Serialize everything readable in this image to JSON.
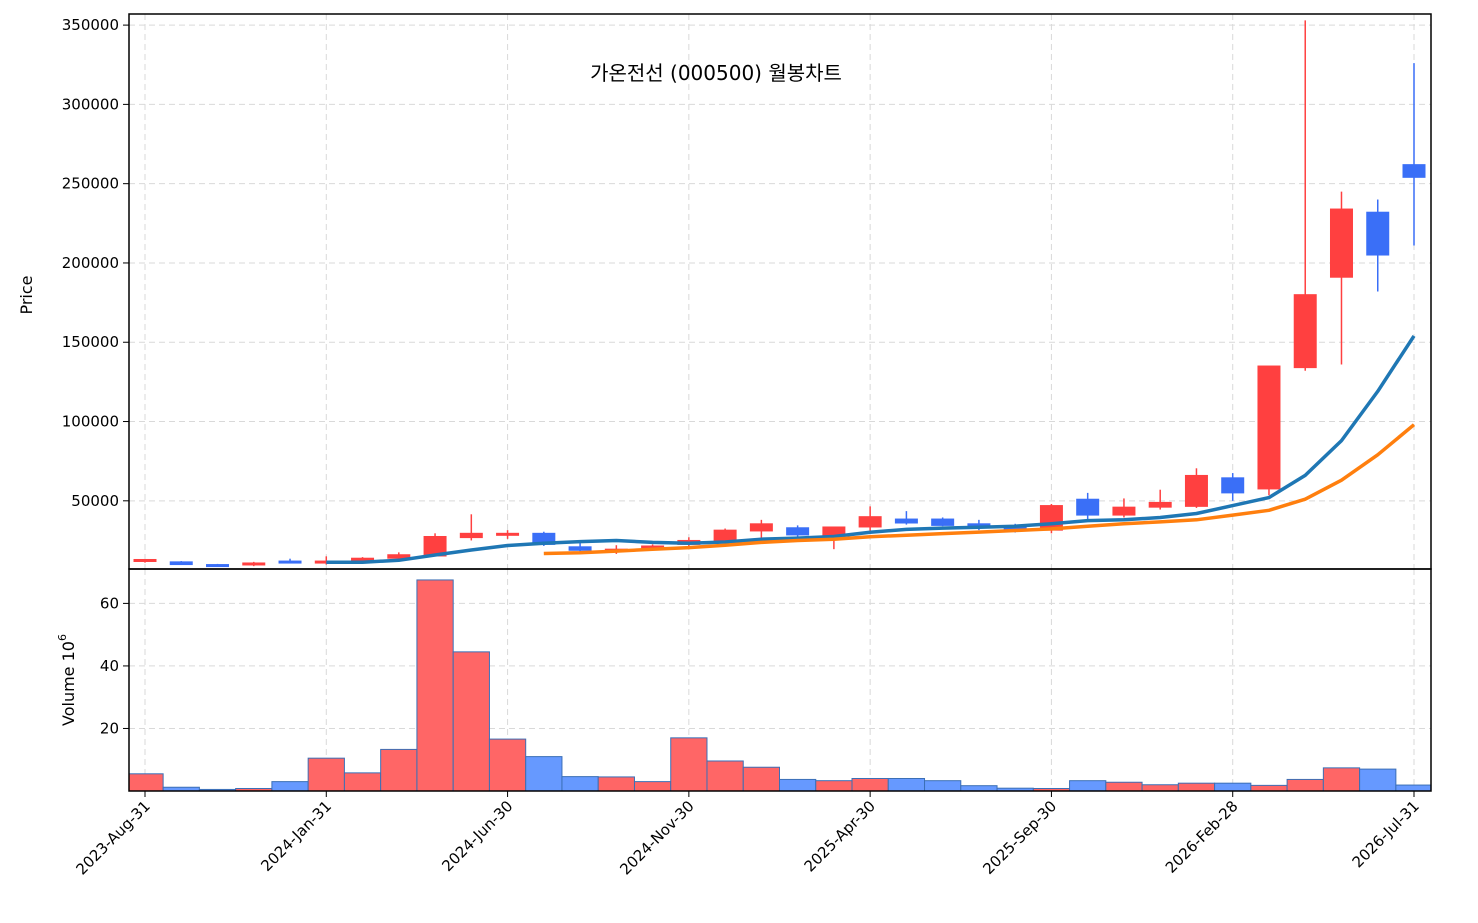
{
  "chart_data": {
    "type": "candlestick",
    "title": "가온전선 (000500) 월봉차트",
    "ylabel": "Price",
    "volume_label": "Volume",
    "volume_exponent": "6",
    "ylim": [
      7000,
      357000
    ],
    "volume_ylim": [
      0,
      71
    ],
    "yticks": [
      50000,
      100000,
      150000,
      200000,
      250000,
      300000,
      350000
    ],
    "volume_yticks": [
      20,
      40,
      60
    ],
    "xtick_labels": [
      "2023-Aug-31",
      "2024-Jan-31",
      "2024-Jun-30",
      "2024-Nov-30",
      "2025-Apr-30",
      "2025-Sep-30",
      "2026-Feb-28",
      "2026-Jul-31"
    ],
    "xtick_indices": [
      0,
      5,
      10,
      15,
      20,
      25,
      30,
      35
    ],
    "up_color": "#ff4040",
    "down_color": "#3a6ff7",
    "volume_up_color": "#ff6666",
    "volume_down_color": "#6699ff",
    "months": [
      "2023-08-31",
      "2023-09-30",
      "2023-10-31",
      "2023-11-30",
      "2023-12-31",
      "2024-01-31",
      "2024-02-29",
      "2024-03-31",
      "2024-04-30",
      "2024-05-31",
      "2024-06-30",
      "2024-07-31",
      "2024-08-31",
      "2024-09-30",
      "2024-10-31",
      "2024-11-30",
      "2024-12-31",
      "2025-01-31",
      "2025-02-28",
      "2025-03-31",
      "2025-04-30",
      "2025-05-31",
      "2025-06-30",
      "2025-07-31",
      "2025-08-31",
      "2025-09-30",
      "2025-10-31",
      "2025-11-30",
      "2025-12-31",
      "2026-01-31",
      "2026-02-28",
      "2026-03-31",
      "2026-04-30",
      "2026-05-31",
      "2026-06-30",
      "2026-07-31"
    ],
    "open": [
      12000,
      11500,
      9800,
      9800,
      12000,
      11000,
      12000,
      13800,
      15200,
      26800,
      29000,
      29500,
      21000,
      18500,
      19500,
      22500,
      25000,
      31000,
      33000,
      26000,
      33500,
      38500,
      38500,
      35500,
      33500,
      31500,
      51000,
      41000,
      46000,
      46500,
      64500,
      57500,
      134000,
      191000,
      232000,
      262000
    ],
    "high": [
      13000,
      12000,
      10200,
      11500,
      13500,
      15000,
      14500,
      17500,
      29500,
      41500,
      31500,
      30500,
      24000,
      22000,
      22500,
      27000,
      32500,
      38000,
      34500,
      30500,
      46500,
      43500,
      39500,
      38000,
      35500,
      48000,
      55000,
      51500,
      57000,
      70500,
      67500,
      135000,
      353000,
      245000,
      240000,
      326000
    ],
    "low": [
      11000,
      9600,
      8400,
      8800,
      10500,
      9800,
      11000,
      13000,
      15000,
      25000,
      26000,
      21500,
      18000,
      16500,
      18500,
      21000,
      23000,
      25500,
      25000,
      19500,
      31000,
      35000,
      34000,
      31500,
      30000,
      29500,
      38000,
      39500,
      44500,
      45500,
      50000,
      53500,
      132000,
      136000,
      182000,
      211000
    ],
    "close": [
      13000,
      9800,
      8700,
      10800,
      11200,
      12000,
      13800,
      16000,
      27500,
      29500,
      29500,
      22500,
      18800,
      19500,
      21500,
      25000,
      31500,
      35500,
      28500,
      33500,
      40000,
      36000,
      34500,
      33000,
      32000,
      47000,
      41000,
      46000,
      49000,
      66000,
      55000,
      135000,
      180000,
      234000,
      205000,
      254000
    ],
    "volume": [
      5.5,
      1.2,
      0.5,
      0.8,
      3.0,
      10.5,
      5.8,
      13.3,
      67.5,
      44.5,
      16.6,
      11.0,
      4.6,
      4.5,
      3.0,
      17.0,
      9.6,
      7.6,
      3.7,
      3.3,
      4.0,
      4.0,
      3.3,
      1.7,
      0.9,
      0.8,
      3.3,
      2.8,
      2.0,
      2.5,
      2.5,
      1.8,
      3.7,
      7.4,
      7.0,
      1.9
    ],
    "series": [
      {
        "name": "",
        "color": "#1f77b4",
        "values": [
          null,
          null,
          null,
          null,
          null,
          11200,
          11300,
          12500,
          15800,
          19000,
          21800,
          23300,
          24300,
          25000,
          23800,
          23200,
          24000,
          25800,
          26500,
          27500,
          30200,
          32000,
          32800,
          33300,
          34000,
          35500,
          37500,
          38000,
          39500,
          42000,
          47000,
          52000,
          66000,
          88000,
          119000,
          154000
        ]
      },
      {
        "name": "",
        "color": "#ff7f0e",
        "values": [
          null,
          null,
          null,
          null,
          null,
          null,
          null,
          null,
          null,
          null,
          null,
          16800,
          17300,
          18300,
          19500,
          20500,
          22000,
          23800,
          25000,
          25800,
          27300,
          28300,
          29300,
          30300,
          31300,
          32300,
          34000,
          35500,
          36700,
          38000,
          41000,
          44000,
          51000,
          63000,
          79000,
          98000
        ]
      }
    ]
  }
}
